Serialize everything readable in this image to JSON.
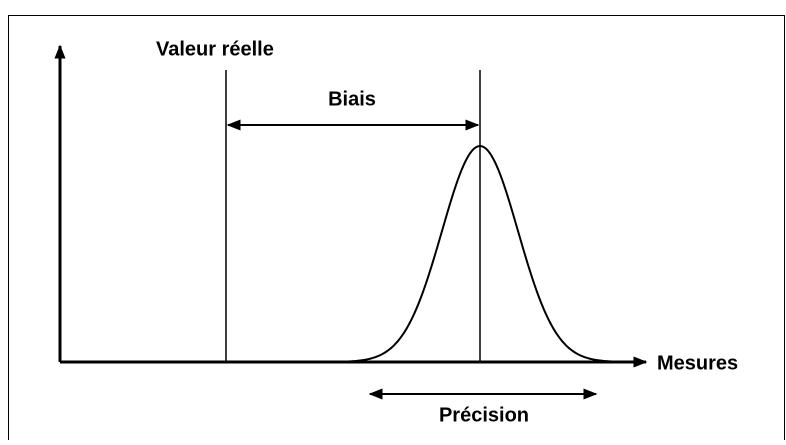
{
  "labels": {
    "true_value": "Valeur réelle",
    "bias": "Biais",
    "measures": "Mesures",
    "precision": "Précision"
  }
}
